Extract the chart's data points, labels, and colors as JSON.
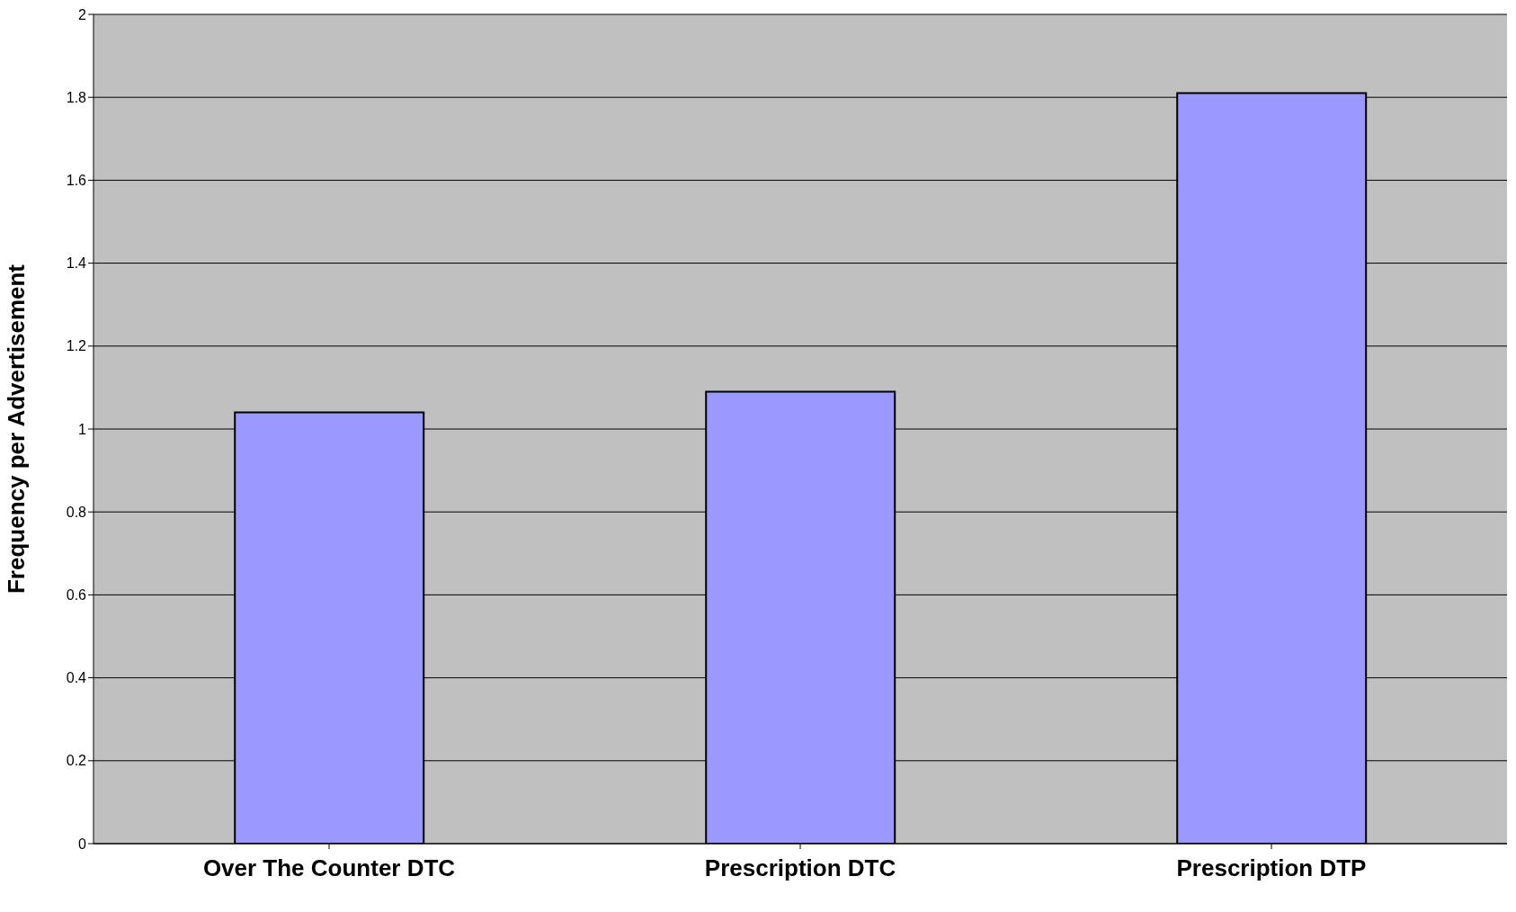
{
  "chart_data": {
    "type": "bar",
    "ylabel": "Frequency per Advertisement",
    "categories": [
      "Over The Counter DTC",
      "Prescription DTC",
      "Prescription DTP"
    ],
    "values": [
      1.04,
      1.09,
      1.81
    ],
    "color": "#9999ff",
    "ylim": [
      0,
      2
    ],
    "yticks": [
      0,
      0.2,
      0.4,
      0.6,
      0.8,
      1,
      1.2,
      1.4,
      1.6,
      1.8,
      2
    ],
    "grid": "y"
  }
}
